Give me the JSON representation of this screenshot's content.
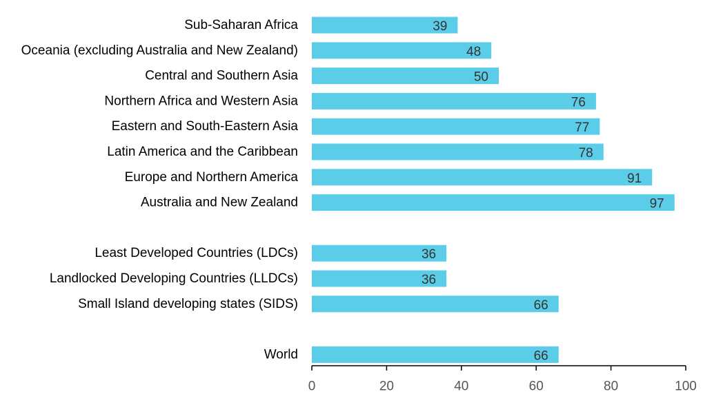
{
  "chart_data": {
    "type": "bar",
    "orientation": "horizontal",
    "title": "",
    "xlabel": "",
    "ylabel": "",
    "xlim": [
      0,
      100
    ],
    "x_ticks": [
      0,
      20,
      40,
      60,
      80,
      100
    ],
    "grid": false,
    "bar_color": "#5BCDE9",
    "categories": [
      "Sub-Saharan Africa",
      "Oceania (excluding Australia and New Zealand)",
      "Central and Southern Asia",
      "Northern Africa and Western Asia",
      "Eastern and South-Eastern Asia",
      "Latin America and the Caribbean",
      "Europe and Northern America",
      "Australia and New Zealand",
      "Least Developed Countries (LDCs)",
      "Landlocked Developing Countries (LLDCs)",
      "Small Island developing states (SIDS)",
      "World"
    ],
    "values": [
      39,
      48,
      50,
      76,
      77,
      78,
      91,
      97,
      36,
      36,
      66,
      66
    ],
    "groups": [
      [
        0,
        1,
        2,
        3,
        4,
        5,
        6,
        7
      ],
      [
        8,
        9,
        10
      ],
      [
        11
      ]
    ]
  }
}
